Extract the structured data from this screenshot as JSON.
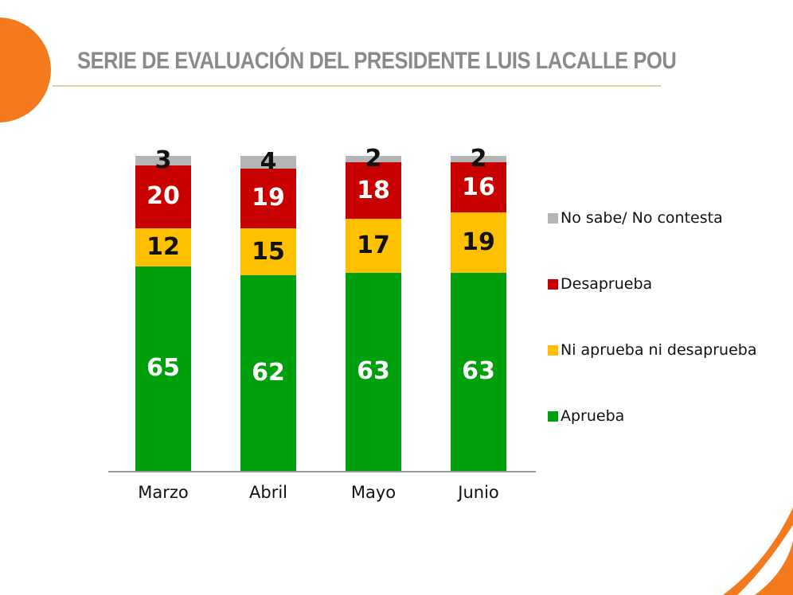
{
  "header": {
    "title": "SERIE DE EVALUACIÓN DEL PRESIDENTE LUIS LACALLE POU"
  },
  "colors": {
    "accent_orange": "#F5791D",
    "title_gray": "#8A8A8A",
    "title_rule_gold": "#DFD39C",
    "axis_gray": "#999999"
  },
  "chart_data": {
    "type": "bar",
    "stacked": true,
    "title": "SERIE DE EVALUACIÓN DEL PRESIDENTE LUIS LACALLE POU",
    "categories": [
      "Marzo",
      "Abril",
      "Mayo",
      "Junio"
    ],
    "series": [
      {
        "name": "Aprueba",
        "color": "#00A00D",
        "label_color": "#FFFFFF",
        "values": [
          65,
          62,
          63,
          63
        ]
      },
      {
        "name": "Ni aprueba ni desaprueba",
        "color": "#FFC000",
        "label_color": "#111111",
        "values": [
          12,
          15,
          17,
          19
        ]
      },
      {
        "name": "Desaprueba",
        "color": "#C80000",
        "label_color": "#FFFFFF",
        "values": [
          20,
          19,
          18,
          16
        ]
      },
      {
        "name": "No sabe/ No contesta",
        "color": "#B5B5B5",
        "label_color": "#111111",
        "values": [
          3,
          4,
          2,
          2
        ]
      }
    ],
    "ylim": [
      0,
      100
    ],
    "grid": false,
    "legend_position": "right",
    "legend_order": [
      "No sabe/ No contesta",
      "Desaprueba",
      "Ni aprueba ni desaprueba",
      "Aprueba"
    ]
  }
}
